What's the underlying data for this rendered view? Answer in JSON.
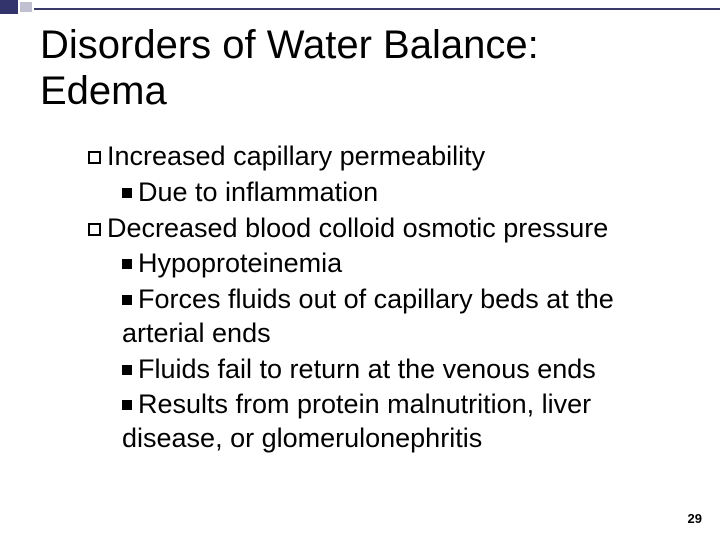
{
  "slide": {
    "title_line1": "Disorders of Water Balance:",
    "title_line2": "Edema",
    "title_color": "#000000",
    "title_fontsize": 40,
    "header_accent_color": "#34346c",
    "header_small_color": "#c0c0d0",
    "background_color": "#ffffff",
    "body_fontsize": 27,
    "body_color": "#000000",
    "page_number": "29",
    "items": [
      {
        "level": 1,
        "bullet": "open",
        "text": "Increased capillary permeability"
      },
      {
        "level": 2,
        "bullet": "solid",
        "text": "Due to inflammation"
      },
      {
        "level": 1,
        "bullet": "open",
        "text": "Decreased blood colloid osmotic pressure"
      },
      {
        "level": 2,
        "bullet": "solid",
        "text": "Hypoproteinemia"
      },
      {
        "level": 2,
        "bullet": "solid",
        "text": "Forces fluids out of capillary beds at the arterial ends"
      },
      {
        "level": 2,
        "bullet": "solid",
        "text": "Fluids fail to return at the venous ends"
      },
      {
        "level": 2,
        "bullet": "solid",
        "text": "Results from protein malnutrition, liver disease, or glomerulonephritis"
      }
    ]
  }
}
